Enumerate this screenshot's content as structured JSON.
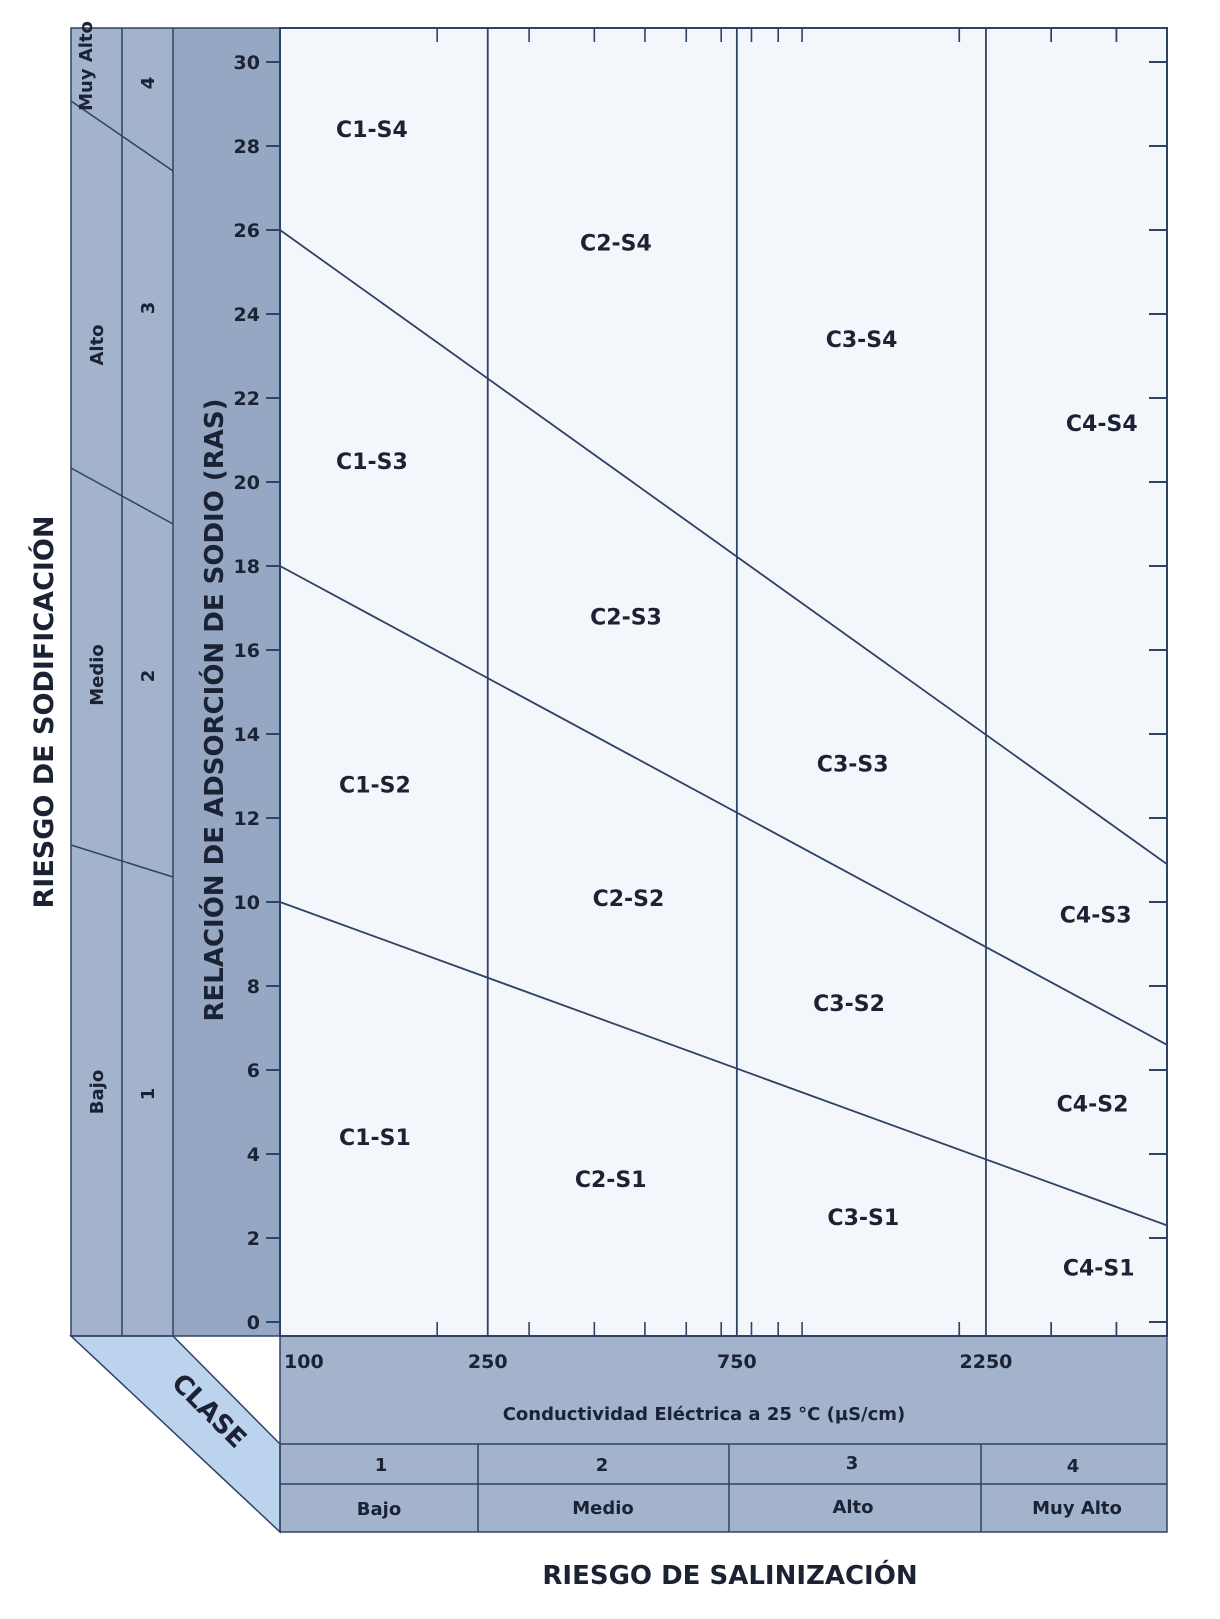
{
  "chart_data": {
    "type": "line",
    "title": "",
    "xlabel": "Conductividad Eléctrica a 25 °C (µS/cm)",
    "ylabel": "RELACIÓN DE ADSORCIÓN DE SODIO (RAS)",
    "x_scale": "log",
    "xlim": [
      100,
      5000
    ],
    "ylim": [
      0,
      31
    ],
    "grid": false,
    "x_ticks": [
      "100",
      "250",
      "750",
      "2250"
    ],
    "y_ticks": [
      "0",
      "2",
      "4",
      "6",
      "8",
      "10",
      "12",
      "14",
      "16",
      "18",
      "20",
      "22",
      "24",
      "26",
      "28",
      "30"
    ],
    "salinity_bounds": [
      250,
      750,
      2250
    ],
    "series": [
      {
        "x": [
          100,
          5000
        ],
        "y": [
          10,
          2.3
        ]
      },
      {
        "x": [
          100,
          5000
        ],
        "y": [
          18,
          6.6
        ]
      },
      {
        "x": [
          100,
          5000
        ],
        "y": [
          26,
          10.9
        ]
      }
    ],
    "zones": [
      {
        "label": "C1-S4",
        "x": 150,
        "y": 28.4
      },
      {
        "label": "C1-S3",
        "x": 150,
        "y": 20.5
      },
      {
        "label": "C1-S2",
        "x": 152,
        "y": 12.8
      },
      {
        "label": "C1-S1",
        "x": 152,
        "y": 4.4
      },
      {
        "label": "C2-S4",
        "x": 440,
        "y": 25.7
      },
      {
        "label": "C2-S3",
        "x": 460,
        "y": 16.8
      },
      {
        "label": "C2-S2",
        "x": 465,
        "y": 10.1
      },
      {
        "label": "C2-S1",
        "x": 430,
        "y": 3.4
      },
      {
        "label": "C3-S4",
        "x": 1300,
        "y": 23.4
      },
      {
        "label": "C3-S3",
        "x": 1250,
        "y": 13.3
      },
      {
        "label": "C3-S2",
        "x": 1230,
        "y": 7.6
      },
      {
        "label": "C3-S1",
        "x": 1310,
        "y": 2.5
      },
      {
        "label": "C4-S4",
        "x": 3750,
        "y": 21.4
      },
      {
        "label": "C4-S3",
        "x": 3650,
        "y": 9.7
      },
      {
        "label": "C4-S2",
        "x": 3600,
        "y": 5.2
      },
      {
        "label": "C4-S1",
        "x": 3700,
        "y": 1.3
      }
    ]
  },
  "left_axis": {
    "title": "RIESGO DE SODIFICACIÓN",
    "classes": [
      "1",
      "2",
      "3",
      "4"
    ],
    "levels": [
      "Bajo",
      "Medio",
      "Alto",
      "Muy Alto"
    ]
  },
  "bottom_axis": {
    "title": "RIESGO DE SALINIZACIÓN",
    "classes": [
      "1",
      "2",
      "3",
      "4"
    ],
    "levels": [
      "Bajo",
      "Medio",
      "Alto",
      "Muy Alto"
    ]
  },
  "corner_label": "CLASE",
  "colors": {
    "band": "#a3b3cc",
    "band_dark": "#95a7c3",
    "corner": "#bcd3ee",
    "plot": "#f3f7fc",
    "line": "#2e4266",
    "text": "#1b2233"
  }
}
